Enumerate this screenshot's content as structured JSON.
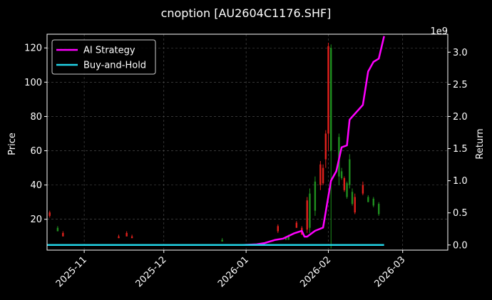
{
  "chart_data": {
    "type": "line",
    "title": "cnoption [AU2604C1176.SHF]",
    "ylabel_left": "Price",
    "ylabel_right": "Return",
    "right_axis_offset_text": "1e9",
    "x_range": [
      "2025-10-18",
      "2026-03-18"
    ],
    "y_left_range": [
      2,
      128
    ],
    "y_right_range": [
      -0.08,
      3.28
    ],
    "x_ticks": [
      "2025-11",
      "2025-12",
      "2026-01",
      "2026-02",
      "2026-03"
    ],
    "y_left_ticks": [
      20,
      40,
      60,
      80,
      100,
      120
    ],
    "y_right_ticks": [
      "0.0",
      "0.5",
      "1.0",
      "1.5",
      "2.0",
      "2.5",
      "3.0"
    ],
    "grid": true,
    "legend_position": "upper-left",
    "series": [
      {
        "name": "AI Strategy",
        "color": "#ff00ff",
        "points": [
          [
            "2025-10-18",
            0.0
          ],
          [
            "2025-12-31",
            0.0
          ],
          [
            "2026-01-05",
            0.01
          ],
          [
            "2026-01-08",
            0.03
          ],
          [
            "2026-01-12",
            0.08
          ],
          [
            "2026-01-15",
            0.1
          ],
          [
            "2026-01-19",
            0.18
          ],
          [
            "2026-01-22",
            0.22
          ],
          [
            "2026-01-23",
            0.13
          ],
          [
            "2026-01-24",
            0.13
          ],
          [
            "2026-01-27",
            0.22
          ],
          [
            "2026-01-30",
            0.27
          ],
          [
            "2026-02-02",
            1.0
          ],
          [
            "2026-02-04",
            1.15
          ],
          [
            "2026-02-06",
            1.52
          ],
          [
            "2026-02-08",
            1.55
          ],
          [
            "2026-02-09",
            1.95
          ],
          [
            "2026-02-14",
            2.18
          ],
          [
            "2026-02-16",
            2.7
          ],
          [
            "2026-02-18",
            2.85
          ],
          [
            "2026-02-20",
            2.9
          ],
          [
            "2026-02-22",
            3.25
          ]
        ]
      },
      {
        "name": "Buy-and-Hold",
        "color": "#22d3e6",
        "points": [
          [
            "2025-10-18",
            0.0
          ],
          [
            "2026-02-22",
            0.0
          ]
        ]
      }
    ],
    "candles": [
      {
        "x": "2025-10-19",
        "low": 21,
        "high": 25,
        "open": 22,
        "close": 24,
        "color": "red"
      },
      {
        "x": "2025-10-22",
        "low": 13,
        "high": 16,
        "open": 13,
        "close": 15,
        "color": "green"
      },
      {
        "x": "2025-10-24",
        "low": 10,
        "high": 13,
        "open": 10,
        "close": 12,
        "color": "red"
      },
      {
        "x": "2025-11-14",
        "low": 9,
        "high": 11,
        "open": 9,
        "close": 10,
        "color": "red"
      },
      {
        "x": "2025-11-17",
        "low": 10,
        "high": 13,
        "open": 10,
        "close": 12,
        "color": "red"
      },
      {
        "x": "2025-11-19",
        "low": 9,
        "high": 11,
        "open": 9,
        "close": 10,
        "color": "red"
      },
      {
        "x": "2025-12-23",
        "low": 7,
        "high": 9,
        "open": 7,
        "close": 8,
        "color": "green"
      },
      {
        "x": "2026-01-13",
        "low": 12,
        "high": 17,
        "open": 13,
        "close": 16,
        "color": "red"
      },
      {
        "x": "2026-01-16",
        "low": 8,
        "high": 10,
        "open": 8,
        "close": 9,
        "color": "green"
      },
      {
        "x": "2026-01-17",
        "low": 8,
        "high": 11,
        "open": 8,
        "close": 10,
        "color": "green"
      },
      {
        "x": "2026-01-20",
        "low": 15,
        "high": 19,
        "open": 15,
        "close": 18,
        "color": "red"
      },
      {
        "x": "2026-01-22",
        "low": 11,
        "high": 16,
        "open": 11,
        "close": 15,
        "color": "red"
      },
      {
        "x": "2026-01-24",
        "low": 12,
        "high": 33,
        "open": 14,
        "close": 31,
        "color": "red"
      },
      {
        "x": "2026-01-25",
        "low": 12,
        "high": 38,
        "open": 15,
        "close": 35,
        "color": "green"
      },
      {
        "x": "2026-01-27",
        "low": 22,
        "high": 45,
        "open": 25,
        "close": 42,
        "color": "green"
      },
      {
        "x": "2026-01-29",
        "low": 37,
        "high": 54,
        "open": 40,
        "close": 52,
        "color": "red"
      },
      {
        "x": "2026-01-30",
        "low": 40,
        "high": 52,
        "open": 41,
        "close": 50,
        "color": "red"
      },
      {
        "x": "2026-01-31",
        "low": 50,
        "high": 72,
        "open": 55,
        "close": 70,
        "color": "red"
      },
      {
        "x": "2026-02-01",
        "low": 60,
        "high": 123,
        "open": 70,
        "close": 121,
        "color": "red"
      },
      {
        "x": "2026-02-02",
        "low": 3,
        "high": 122,
        "open": 60,
        "close": 120,
        "color": "green"
      },
      {
        "x": "2026-02-05",
        "low": 40,
        "high": 70,
        "open": 45,
        "close": 68,
        "color": "green"
      },
      {
        "x": "2026-02-06",
        "low": 43,
        "high": 50,
        "open": 44,
        "close": 48,
        "color": "green"
      },
      {
        "x": "2026-02-07",
        "low": 36,
        "high": 45,
        "open": 37,
        "close": 44,
        "color": "red"
      },
      {
        "x": "2026-02-08",
        "low": 32,
        "high": 42,
        "open": 33,
        "close": 41,
        "color": "green"
      },
      {
        "x": "2026-02-09",
        "low": 38,
        "high": 58,
        "open": 40,
        "close": 55,
        "color": "green"
      },
      {
        "x": "2026-02-10",
        "low": 28,
        "high": 38,
        "open": 29,
        "close": 36,
        "color": "green"
      },
      {
        "x": "2026-02-11",
        "low": 23,
        "high": 35,
        "open": 24,
        "close": 33,
        "color": "red"
      },
      {
        "x": "2026-02-14",
        "low": 34,
        "high": 42,
        "open": 35,
        "close": 40,
        "color": "red"
      },
      {
        "x": "2026-02-16",
        "low": 30,
        "high": 34,
        "open": 30,
        "close": 33,
        "color": "green"
      },
      {
        "x": "2026-02-18",
        "low": 27,
        "high": 33,
        "open": 28,
        "close": 32,
        "color": "green"
      },
      {
        "x": "2026-02-20",
        "low": 22,
        "high": 30,
        "open": 23,
        "close": 29,
        "color": "green"
      }
    ]
  }
}
